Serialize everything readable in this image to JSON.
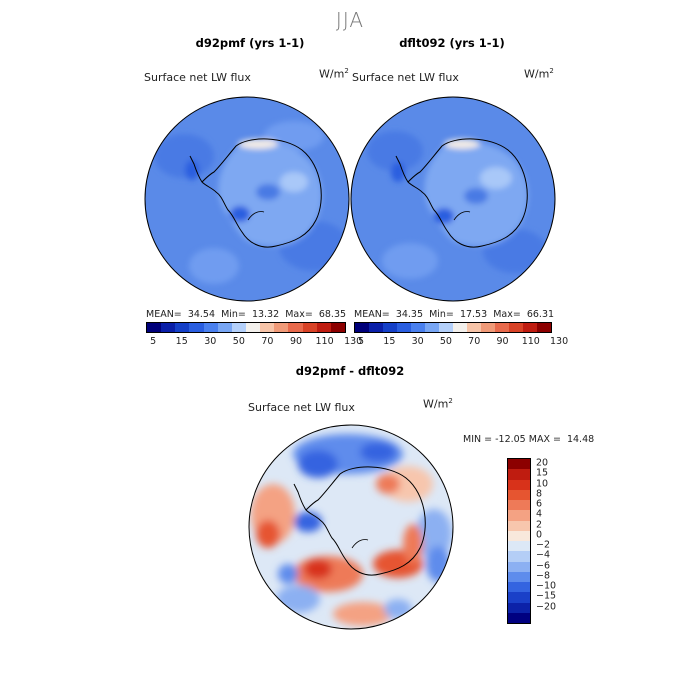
{
  "season": "JJA",
  "panels": [
    {
      "title": "d92pmf (yrs 1-1)",
      "field": "Surface net LW flux",
      "units_base": "W/m",
      "units_exp": "2",
      "mean_label": "MEAN=",
      "mean": "34.54",
      "min_label": "Min=",
      "min": "13.32",
      "max_label": "Max=",
      "max": "68.35"
    },
    {
      "title": "dflt092 (yrs 1-1)",
      "field": "Surface net LW flux",
      "units_base": "W/m",
      "units_exp": "2",
      "mean_label": "MEAN=",
      "mean": "34.35",
      "min_label": "Min=",
      "min": "17.53",
      "max_label": "Max=",
      "max": "66.31"
    }
  ],
  "diff": {
    "title": "d92pmf - dflt092",
    "field": "Surface net LW flux",
    "units_base": "W/m",
    "units_exp": "2",
    "stats": "MIN = -12.05 MAX =  14.48"
  },
  "abs_colorbar": {
    "colors": [
      "#00007a",
      "#0a1fa8",
      "#1540c8",
      "#2a5ee0",
      "#4a80ee",
      "#78a6f4",
      "#b4d0fa",
      "#f3f0ec",
      "#f7c4a8",
      "#f09a78",
      "#e86a4c",
      "#d84226",
      "#bf1c10",
      "#8c0000"
    ],
    "tick_labels": [
      "5",
      "15",
      "30",
      "50",
      "70",
      "90",
      "110",
      "130"
    ]
  },
  "diff_colorbar": {
    "colors": [
      "#8c0000",
      "#bf1c10",
      "#d8321a",
      "#e65530",
      "#ee7a58",
      "#f4a283",
      "#f7c6ad",
      "#f8e8dc",
      "#dce8f6",
      "#b4cef6",
      "#8cb0f2",
      "#5e8cec",
      "#3464e0",
      "#1a40c8",
      "#0c22a8",
      "#000080"
    ],
    "tick_labels": [
      "20",
      "15",
      "10",
      "8",
      "6",
      "4",
      "2",
      "0",
      "−2",
      "−4",
      "−6",
      "−8",
      "−10",
      "−15",
      "−20"
    ]
  }
}
